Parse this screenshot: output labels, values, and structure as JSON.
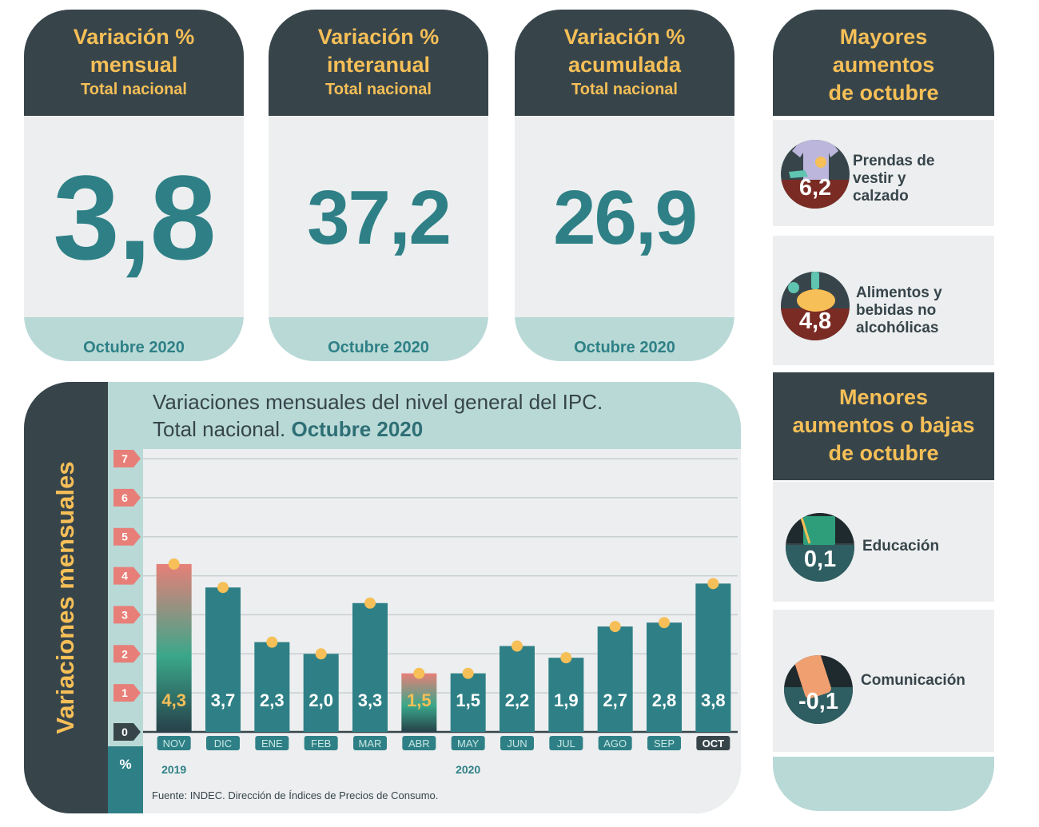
{
  "kpis": [
    {
      "title": "Variación %",
      "subtitle1": "mensual",
      "subtitle2": "Total nacional",
      "value": "3,8",
      "footer": "Octubre 2020"
    },
    {
      "title": "Variación %",
      "subtitle1": "interanual",
      "subtitle2": "Total nacional",
      "value": "37,2",
      "footer": "Octubre 2020"
    },
    {
      "title": "Variación %",
      "subtitle1": "acumulada",
      "subtitle2": "Total nacional",
      "value": "26,9",
      "footer": "Octubre 2020"
    }
  ],
  "mayores": {
    "heading": [
      "Mayores",
      "aumentos",
      "de octubre"
    ],
    "items": [
      {
        "value": "6,2",
        "label": [
          "Prendas de",
          "vestir y",
          "calzado"
        ],
        "icon": "clothing-icon"
      },
      {
        "value": "4,8",
        "label": [
          "Alimentos y",
          "bebidas no",
          "alcohólicas"
        ],
        "icon": "food-icon"
      }
    ]
  },
  "menores": {
    "heading": [
      "Menores",
      "aumentos o bajas",
      "de octubre"
    ],
    "items": [
      {
        "value": "0,1",
        "label": [
          "Educación"
        ],
        "icon": "books-icon"
      },
      {
        "value": "-0,1",
        "label": [
          "Comunicación"
        ],
        "icon": "phone-icon"
      }
    ]
  },
  "colors": {
    "dark": "#37454b",
    "teal": "#2e8086",
    "yellow": "#f6bf57",
    "light_teal": "#b9d9d7",
    "gray": "#eceeef",
    "red_badge": "#7a2b24",
    "tick_red": "#e77f78"
  },
  "chart_data": {
    "type": "bar",
    "title_line1": "Variaciones mensuales del nivel general del IPC.",
    "title_line2_plain": "Total nacional.",
    "title_line2_bold": "Octubre 2020",
    "ylabel": "Variaciones mensuales",
    "unit_label": "%",
    "ylim": [
      0,
      7
    ],
    "yticks": [
      "0",
      "1",
      "2",
      "3",
      "4",
      "5",
      "6",
      "7"
    ],
    "categories": [
      "NOV",
      "DIC",
      "ENE",
      "FEB",
      "MAR",
      "ABR",
      "MAY",
      "JUN",
      "JUL",
      "AGO",
      "SEP",
      "OCT"
    ],
    "values": [
      4.3,
      3.7,
      2.3,
      2.0,
      3.3,
      1.5,
      1.5,
      2.2,
      1.9,
      2.7,
      2.8,
      3.8
    ],
    "value_labels": [
      "4,3",
      "3,7",
      "2,3",
      "2,0",
      "3,3",
      "1,5",
      "1,5",
      "2,2",
      "1,9",
      "2,7",
      "2,8",
      "3,8"
    ],
    "highlighted": [
      "NOV",
      "ABR"
    ],
    "years": [
      {
        "label": "2019",
        "at": "NOV"
      },
      {
        "label": "2020",
        "at": "MAY"
      }
    ],
    "grid": true,
    "source": "Fuente: INDEC. Dirección de Índices de Precios de Consumo."
  }
}
